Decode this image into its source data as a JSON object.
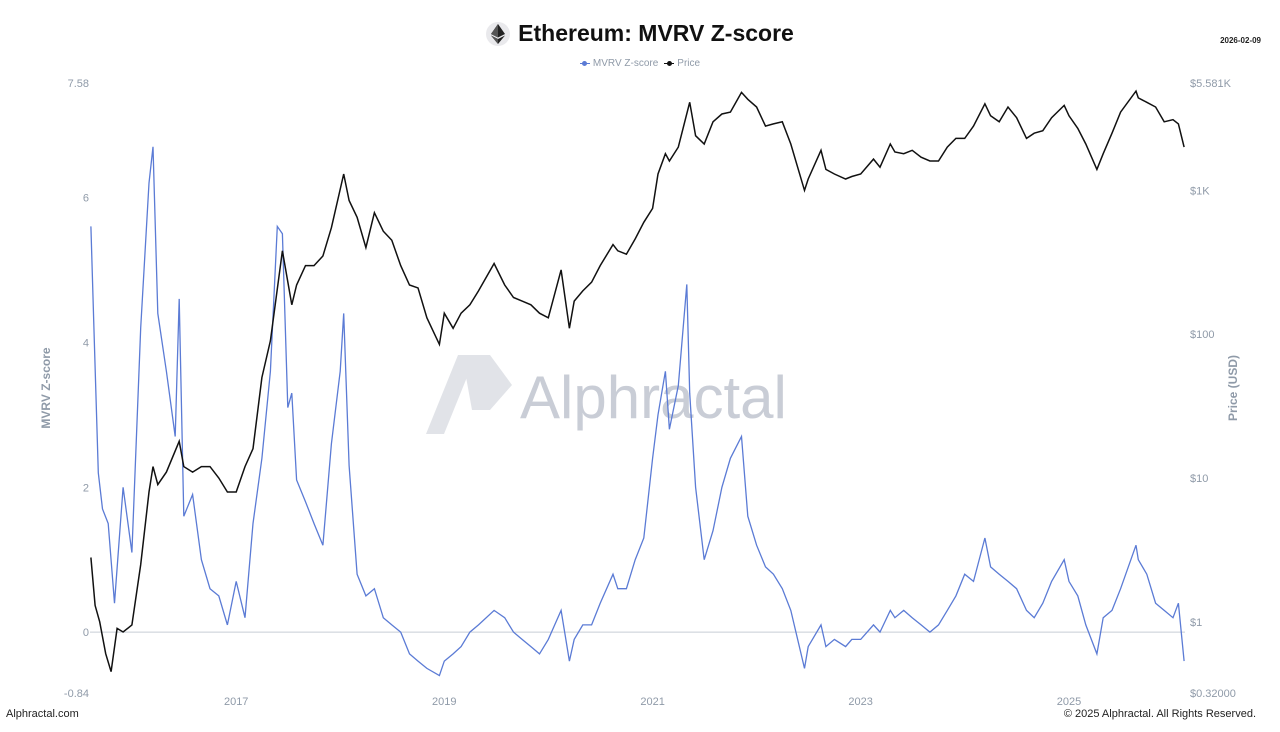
{
  "header": {
    "title": "Ethereum: MVRV Z-score",
    "date": "2026-02-09",
    "icon": "ethereum-icon"
  },
  "legend": [
    {
      "label": "MVRV Z-score",
      "color": "#5b7bd5"
    },
    {
      "label": "Price",
      "color": "#111111"
    }
  ],
  "watermark": "Alphractal",
  "footer": {
    "left": "Alphractal.com",
    "right": "© 2025 Alphractal. All Rights Reserved."
  },
  "chart_data": {
    "type": "line",
    "ylabel": "MVRV Z-score",
    "y2label": "Price (USD)",
    "x_ticks": [
      "2017",
      "2019",
      "2021",
      "2023",
      "2025"
    ],
    "y_ticks": [
      "7.58",
      "6",
      "4",
      "2",
      "0",
      "-0.84"
    ],
    "y_tick_values": [
      7.58,
      6,
      4,
      2,
      0,
      -0.84
    ],
    "y2_ticks": [
      "$5.581K",
      "$1K",
      "$100",
      "$10",
      "$1",
      "$0.32000"
    ],
    "y2_tick_values": [
      5581,
      1000,
      100,
      10,
      1,
      0.32
    ],
    "ylim": [
      -0.84,
      7.58
    ],
    "y2lim": [
      0.32,
      5581
    ],
    "y2_scale": "log",
    "grid": false,
    "legend_position": "top-center",
    "series": [
      {
        "name": "MVRV Z-score",
        "color": "#5b7bd5",
        "x": [
          "2015-08-10",
          "2015-08-20",
          "2015-09-05",
          "2015-09-20",
          "2015-10-10",
          "2015-11-01",
          "2015-12-01",
          "2016-01-01",
          "2016-02-01",
          "2016-03-01",
          "2016-03-15",
          "2016-04-01",
          "2016-05-01",
          "2016-06-01",
          "2016-06-15",
          "2016-07-01",
          "2016-08-01",
          "2016-09-01",
          "2016-10-01",
          "2016-11-01",
          "2016-12-01",
          "2017-01-01",
          "2017-02-01",
          "2017-03-01",
          "2017-04-01",
          "2017-05-01",
          "2017-05-25",
          "2017-06-12",
          "2017-07-01",
          "2017-07-15",
          "2017-08-01",
          "2017-09-01",
          "2017-10-01",
          "2017-11-01",
          "2017-12-01",
          "2018-01-01",
          "2018-01-13",
          "2018-02-01",
          "2018-03-01",
          "2018-04-01",
          "2018-05-01",
          "2018-06-01",
          "2018-07-01",
          "2018-08-01",
          "2018-09-01",
          "2018-10-01",
          "2018-11-01",
          "2018-12-15",
          "2019-01-01",
          "2019-02-01",
          "2019-03-01",
          "2019-04-01",
          "2019-05-01",
          "2019-06-25",
          "2019-08-01",
          "2019-09-01",
          "2019-10-01",
          "2019-11-01",
          "2019-12-01",
          "2020-01-01",
          "2020-02-15",
          "2020-03-15",
          "2020-04-01",
          "2020-05-01",
          "2020-06-01",
          "2020-07-01",
          "2020-08-15",
          "2020-09-01",
          "2020-10-01",
          "2020-11-01",
          "2020-12-01",
          "2021-01-01",
          "2021-01-20",
          "2021-02-15",
          "2021-03-01",
          "2021-04-01",
          "2021-05-01",
          "2021-05-11",
          "2021-06-01",
          "2021-07-01",
          "2021-08-01",
          "2021-09-01",
          "2021-10-01",
          "2021-11-09",
          "2021-12-01",
          "2022-01-01",
          "2022-02-01",
          "2022-03-01",
          "2022-04-01",
          "2022-05-01",
          "2022-06-18",
          "2022-07-01",
          "2022-08-15",
          "2022-09-01",
          "2022-10-01",
          "2022-11-09",
          "2022-12-01",
          "2023-01-01",
          "2023-02-15",
          "2023-03-10",
          "2023-04-15",
          "2023-05-01",
          "2023-06-01",
          "2023-07-01",
          "2023-08-01",
          "2023-09-01",
          "2023-10-01",
          "2023-11-01",
          "2023-12-01",
          "2024-01-01",
          "2024-02-01",
          "2024-03-12",
          "2024-04-01",
          "2024-05-01",
          "2024-06-01",
          "2024-07-01",
          "2024-08-05",
          "2024-09-01",
          "2024-10-01",
          "2024-11-01",
          "2024-12-15",
          "2025-01-01",
          "2025-02-01",
          "2025-03-01",
          "2025-04-09",
          "2025-05-01",
          "2025-06-01",
          "2025-07-01",
          "2025-08-24",
          "2025-09-01",
          "2025-10-01",
          "2025-11-01",
          "2025-12-01",
          "2026-01-01",
          "2026-01-20",
          "2026-02-09"
        ],
        "values": [
          5.6,
          4.3,
          2.2,
          1.7,
          1.5,
          0.4,
          2.0,
          1.1,
          4.2,
          6.2,
          6.7,
          4.4,
          3.6,
          2.7,
          4.6,
          1.6,
          1.9,
          1.0,
          0.6,
          0.5,
          0.1,
          0.7,
          0.2,
          1.5,
          2.4,
          3.6,
          5.6,
          5.5,
          3.1,
          3.3,
          2.1,
          1.8,
          1.5,
          1.2,
          2.6,
          3.6,
          4.4,
          2.3,
          0.8,
          0.5,
          0.6,
          0.2,
          0.1,
          0.0,
          -0.3,
          -0.4,
          -0.5,
          -0.6,
          -0.4,
          -0.3,
          -0.2,
          0.0,
          0.1,
          0.3,
          0.2,
          0.0,
          -0.1,
          -0.2,
          -0.3,
          -0.1,
          0.3,
          -0.4,
          -0.1,
          0.1,
          0.1,
          0.4,
          0.8,
          0.6,
          0.6,
          1.0,
          1.3,
          2.4,
          3.0,
          3.6,
          2.8,
          3.4,
          4.8,
          3.3,
          2.0,
          1.0,
          1.4,
          2.0,
          2.4,
          2.7,
          1.6,
          1.2,
          0.9,
          0.8,
          0.6,
          0.3,
          -0.5,
          -0.2,
          0.1,
          -0.2,
          -0.1,
          -0.2,
          -0.1,
          -0.1,
          0.1,
          0.0,
          0.3,
          0.2,
          0.3,
          0.2,
          0.1,
          0.0,
          0.1,
          0.3,
          0.5,
          0.8,
          0.7,
          1.3,
          0.9,
          0.8,
          0.7,
          0.6,
          0.3,
          0.2,
          0.4,
          0.7,
          1.0,
          0.7,
          0.5,
          0.1,
          -0.3,
          0.2,
          0.3,
          0.6,
          1.2,
          1.0,
          0.8,
          0.4,
          0.3,
          0.2,
          0.4,
          -0.4
        ]
      },
      {
        "name": "Price",
        "color": "#111111",
        "axis": "right",
        "x": [
          "2015-08-10",
          "2015-08-25",
          "2015-09-10",
          "2015-10-01",
          "2015-10-20",
          "2015-11-10",
          "2015-12-01",
          "2016-01-01",
          "2016-02-01",
          "2016-03-01",
          "2016-03-15",
          "2016-04-01",
          "2016-05-01",
          "2016-06-15",
          "2016-07-01",
          "2016-08-01",
          "2016-09-01",
          "2016-10-01",
          "2016-11-01",
          "2016-12-01",
          "2017-01-01",
          "2017-02-01",
          "2017-03-01",
          "2017-04-01",
          "2017-05-01",
          "2017-06-12",
          "2017-07-15",
          "2017-08-01",
          "2017-09-01",
          "2017-10-01",
          "2017-11-01",
          "2017-12-01",
          "2018-01-13",
          "2018-02-01",
          "2018-03-01",
          "2018-04-01",
          "2018-05-01",
          "2018-06-01",
          "2018-07-01",
          "2018-08-01",
          "2018-09-01",
          "2018-10-01",
          "2018-11-01",
          "2018-12-15",
          "2019-01-01",
          "2019-02-01",
          "2019-03-01",
          "2019-04-01",
          "2019-05-01",
          "2019-06-25",
          "2019-08-01",
          "2019-09-01",
          "2019-10-01",
          "2019-11-01",
          "2019-12-01",
          "2020-01-01",
          "2020-02-15",
          "2020-03-15",
          "2020-04-01",
          "2020-05-01",
          "2020-06-01",
          "2020-07-01",
          "2020-08-15",
          "2020-09-01",
          "2020-10-01",
          "2020-11-01",
          "2020-12-01",
          "2021-01-01",
          "2021-01-20",
          "2021-02-15",
          "2021-03-01",
          "2021-04-01",
          "2021-05-11",
          "2021-06-01",
          "2021-07-01",
          "2021-08-01",
          "2021-09-01",
          "2021-10-01",
          "2021-11-09",
          "2021-12-01",
          "2022-01-01",
          "2022-02-01",
          "2022-03-01",
          "2022-04-01",
          "2022-05-01",
          "2022-06-18",
          "2022-07-01",
          "2022-08-15",
          "2022-09-01",
          "2022-10-01",
          "2022-11-09",
          "2022-12-01",
          "2023-01-01",
          "2023-02-15",
          "2023-03-10",
          "2023-04-15",
          "2023-05-01",
          "2023-06-01",
          "2023-07-01",
          "2023-08-01",
          "2023-09-01",
          "2023-10-01",
          "2023-11-01",
          "2023-12-01",
          "2024-01-01",
          "2024-02-01",
          "2024-03-12",
          "2024-04-01",
          "2024-05-01",
          "2024-06-01",
          "2024-07-01",
          "2024-08-05",
          "2024-09-01",
          "2024-10-01",
          "2024-11-01",
          "2024-12-15",
          "2025-01-01",
          "2025-02-01",
          "2025-03-01",
          "2025-04-09",
          "2025-05-01",
          "2025-06-01",
          "2025-07-01",
          "2025-08-24",
          "2025-09-01",
          "2025-10-01",
          "2025-11-01",
          "2025-12-01",
          "2026-01-01",
          "2026-01-20",
          "2026-02-09"
        ],
        "values": [
          2.8,
          1.3,
          1.0,
          0.6,
          0.45,
          0.9,
          0.85,
          0.95,
          2.5,
          8.0,
          12.0,
          9.0,
          11.0,
          18.0,
          12.0,
          11.0,
          12.0,
          12.0,
          10.0,
          8.0,
          8.0,
          12.0,
          16.0,
          50.0,
          90.0,
          380.0,
          160.0,
          220.0,
          300.0,
          300.0,
          350.0,
          550.0,
          1300.0,
          850.0,
          650.0,
          400.0,
          700.0,
          520.0,
          450.0,
          300.0,
          220.0,
          210.0,
          130.0,
          85.0,
          140.0,
          110.0,
          140.0,
          160.0,
          200.0,
          310.0,
          220.0,
          180.0,
          170.0,
          160.0,
          140.0,
          130.0,
          280.0,
          110.0,
          170.0,
          200.0,
          230.0,
          300.0,
          420.0,
          380.0,
          360.0,
          460.0,
          600.0,
          750.0,
          1300.0,
          1800.0,
          1600.0,
          2000.0,
          4100.0,
          2400.0,
          2100.0,
          3000.0,
          3400.0,
          3500.0,
          4800.0,
          4300.0,
          3800.0,
          2800.0,
          2900.0,
          3000.0,
          2100.0,
          1000.0,
          1200.0,
          1900.0,
          1400.0,
          1300.0,
          1200.0,
          1250.0,
          1300.0,
          1650.0,
          1450.0,
          2100.0,
          1850.0,
          1800.0,
          1900.0,
          1700.0,
          1600.0,
          1600.0,
          2000.0,
          2300.0,
          2300.0,
          2800.0,
          4000.0,
          3300.0,
          3000.0,
          3800.0,
          3200.0,
          2300.0,
          2500.0,
          2600.0,
          3200.0,
          3900.0,
          3300.0,
          2700.0,
          2100.0,
          1400.0,
          1800.0,
          2500.0,
          3500.0,
          4900.0,
          4400.0,
          4100.0,
          3800.0,
          3000.0,
          3100.0,
          2900.0,
          2000.0
        ]
      }
    ]
  }
}
